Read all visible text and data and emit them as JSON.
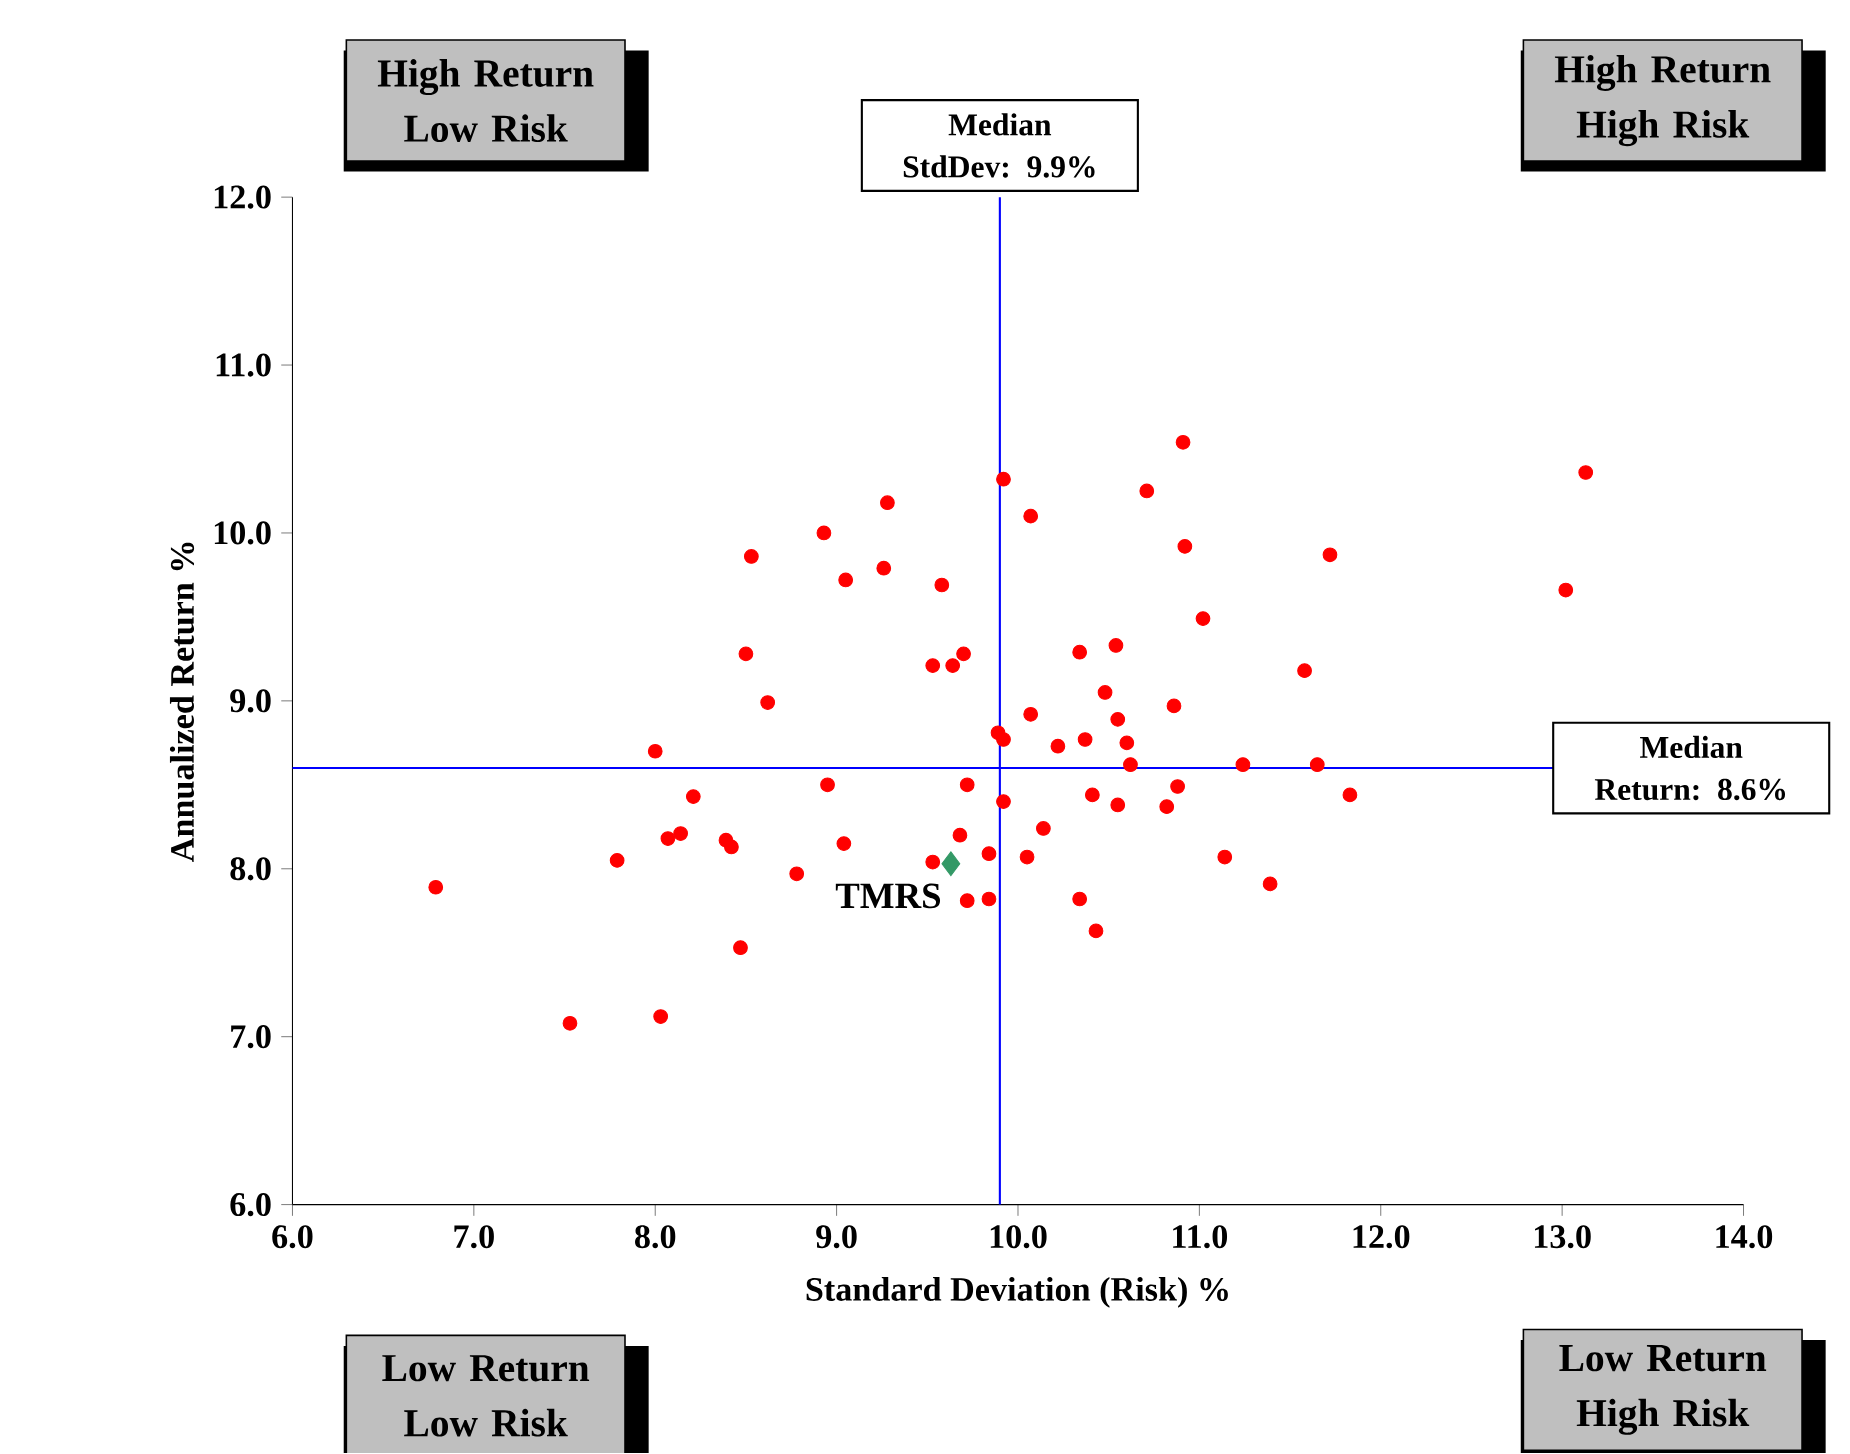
{
  "chart_data": {
    "type": "scatter",
    "xlabel": "Standard Deviation (Risk) %",
    "ylabel": "Annualized Return %",
    "xlim": [
      6,
      14
    ],
    "ylim": [
      6,
      12
    ],
    "xticks": [
      {
        "value": 6,
        "label": "6.0"
      },
      {
        "value": 7,
        "label": "7.0"
      },
      {
        "value": 8,
        "label": "8.0"
      },
      {
        "value": 9,
        "label": "9.0"
      },
      {
        "value": 10,
        "label": "10.0"
      },
      {
        "value": 11,
        "label": "11.0"
      },
      {
        "value": 12,
        "label": "12.0"
      },
      {
        "value": 13,
        "label": "13.0"
      },
      {
        "value": 14,
        "label": "14.0"
      }
    ],
    "yticks": [
      {
        "value": 6,
        "label": "6.0"
      },
      {
        "value": 7,
        "label": "7.0"
      },
      {
        "value": 8,
        "label": "8.0"
      },
      {
        "value": 9,
        "label": "9.0"
      },
      {
        "value": 10,
        "label": "10.0"
      },
      {
        "value": 11,
        "label": "11.0"
      },
      {
        "value": 12,
        "label": "12.0"
      }
    ],
    "series": [
      {
        "color": "#ff0000",
        "marker": "circle",
        "x": [
          6.79,
          7.53,
          8.03,
          7.79,
          8.0,
          8.07,
          8.14,
          8.21,
          8.39,
          8.42,
          8.47,
          8.5,
          8.53,
          8.62,
          8.78,
          8.93,
          8.95,
          9.04,
          9.05,
          9.26,
          9.28,
          9.53,
          9.53,
          9.58,
          9.64,
          9.7,
          9.72,
          9.68,
          9.72,
          9.84,
          9.84,
          9.89,
          9.92,
          9.92,
          9.92,
          10.07,
          10.05,
          10.07,
          10.14,
          10.22,
          10.34,
          10.34,
          10.37,
          10.41,
          10.43,
          10.48,
          10.54,
          10.55,
          10.55,
          10.6,
          10.62,
          10.71,
          10.82,
          10.86,
          10.88,
          10.91,
          10.92,
          11.02,
          11.14,
          11.24,
          11.39,
          11.58,
          11.65,
          11.72,
          11.83,
          13.02,
          13.13
        ],
        "values": [
          7.89,
          7.08,
          7.12,
          8.05,
          8.7,
          8.18,
          8.21,
          8.43,
          8.17,
          8.13,
          7.53,
          9.28,
          9.86,
          8.99,
          7.97,
          10.0,
          8.5,
          8.15,
          9.72,
          9.79,
          10.18,
          9.21,
          8.04,
          9.69,
          9.21,
          9.28,
          8.5,
          8.2,
          7.81,
          7.82,
          8.09,
          8.81,
          8.77,
          8.4,
          10.32,
          10.1,
          8.07,
          8.92,
          8.24,
          8.73,
          7.82,
          9.29,
          8.77,
          8.44,
          7.63,
          9.05,
          9.33,
          8.89,
          8.38,
          8.75,
          8.62,
          10.25,
          8.37,
          8.97,
          8.49,
          10.54,
          9.92,
          9.49,
          8.07,
          8.62,
          7.91,
          9.18,
          8.62,
          9.87,
          8.44,
          9.66,
          10.36
        ]
      },
      {
        "name": "TMRS",
        "color": "#339966",
        "marker": "diamond",
        "x": [
          9.63
        ],
        "values": [
          8.03
        ]
      }
    ],
    "ref_lines": [
      {
        "axis": "x",
        "value": 9.9,
        "label": "Median StdDev: 9.9%",
        "color": "#0000ff"
      },
      {
        "axis": "y",
        "value": 8.6,
        "label": "Median Return: 8.6%",
        "color": "#0000ff"
      }
    ],
    "annotations": [
      "High Return Low Risk",
      "High Return High Risk",
      "Low Return Low Risk",
      "Low Return High Risk"
    ]
  }
}
